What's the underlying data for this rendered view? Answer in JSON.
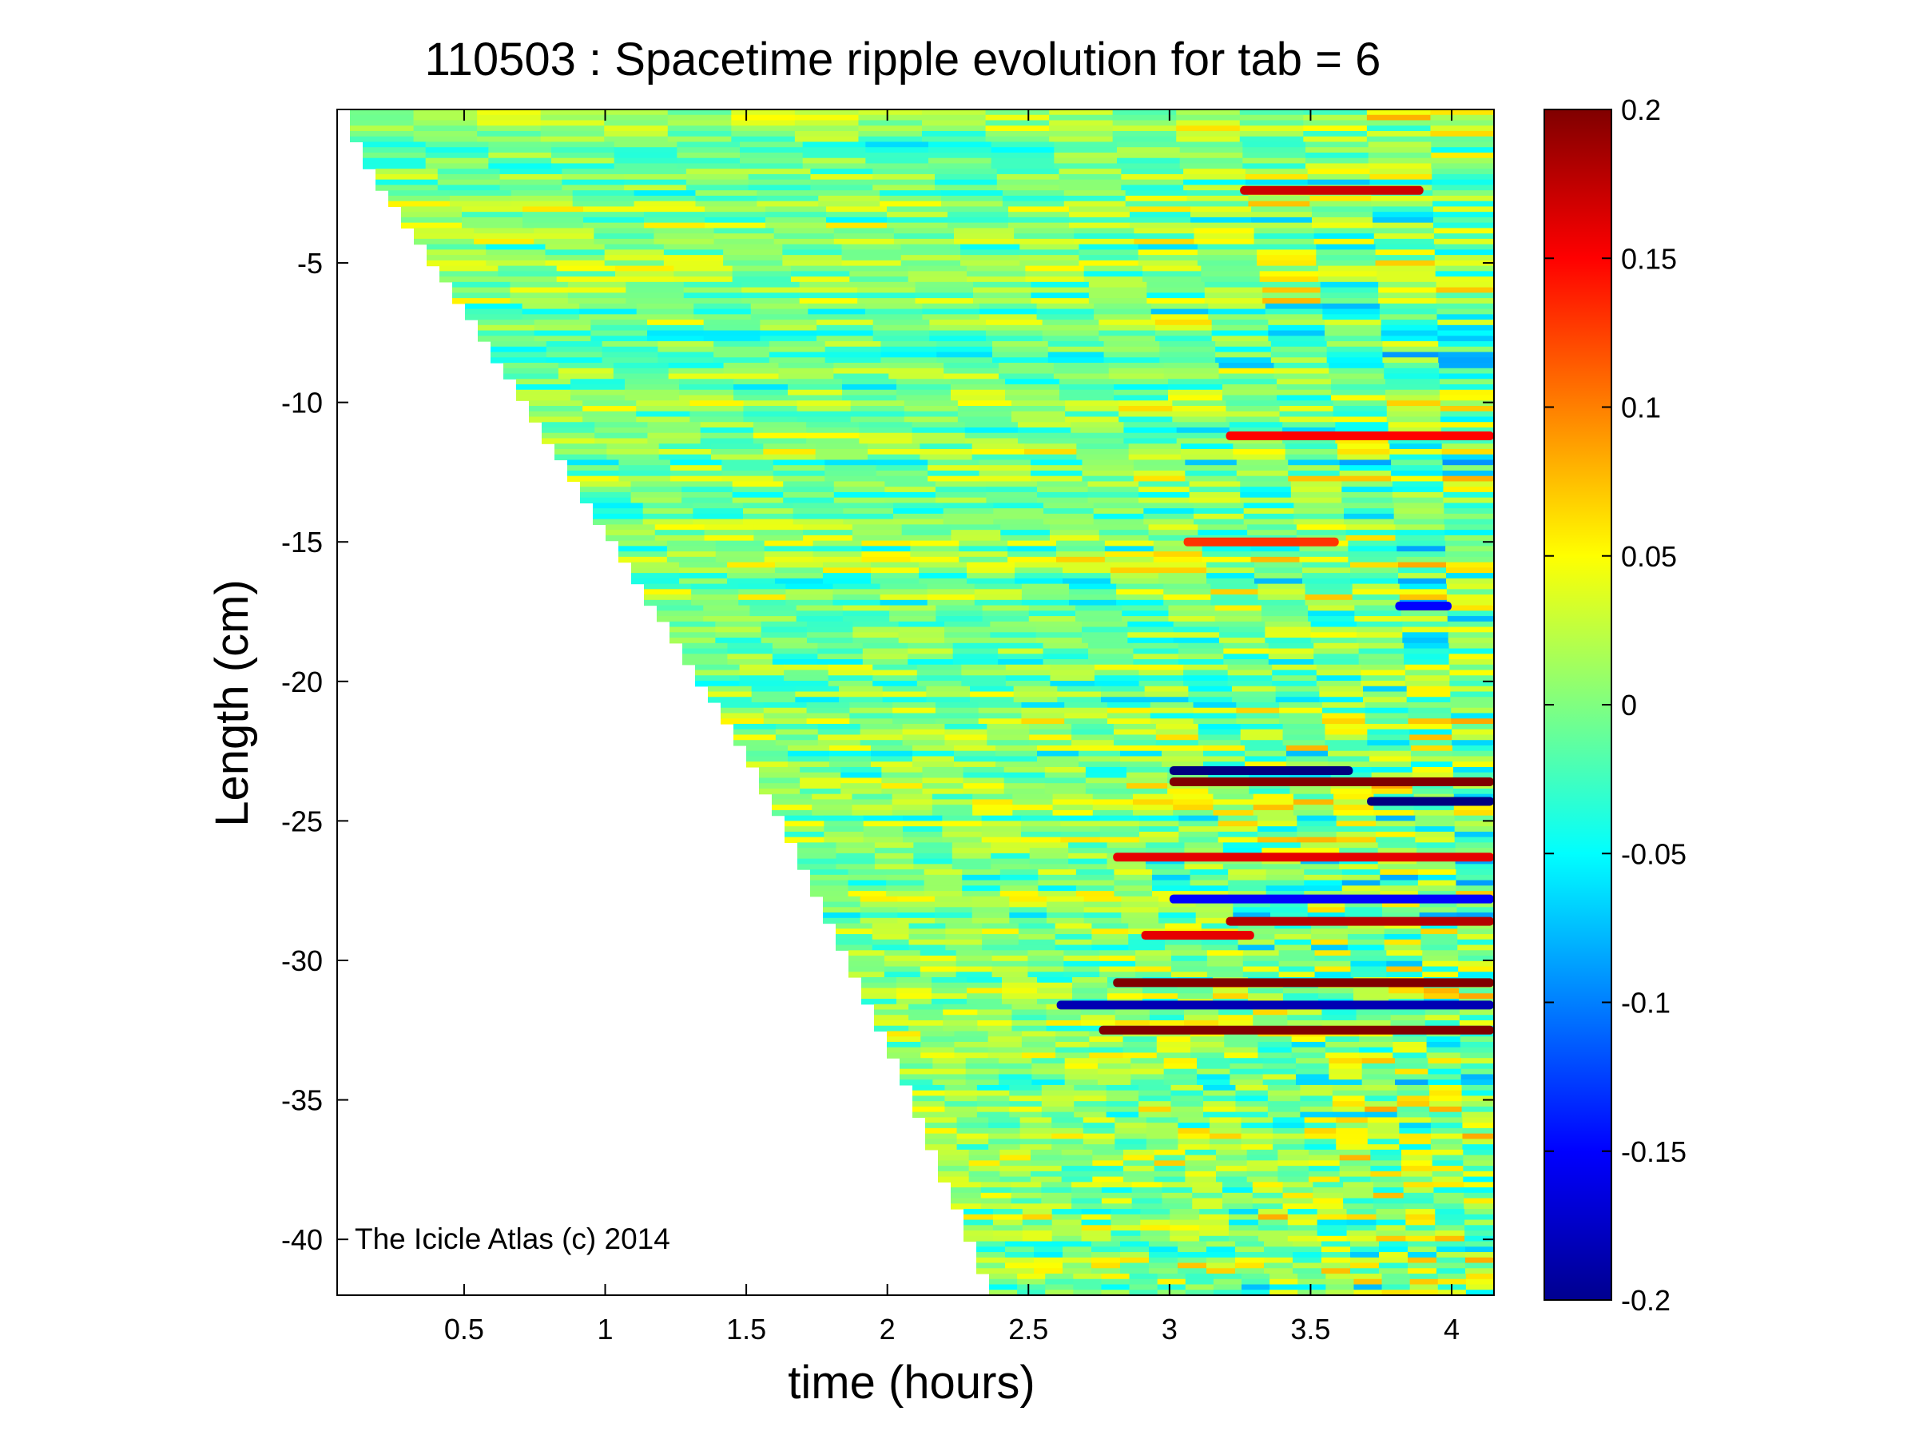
{
  "chart_data": {
    "type": "heatmap",
    "title": "110503 : Spacetime ripple evolution for tab = 6",
    "xlabel": "time (hours)",
    "ylabel": "Length (cm)",
    "xlim": [
      0.05,
      4.15
    ],
    "ylim": [
      -42,
      0.5
    ],
    "xticks": [
      0.5,
      1,
      1.5,
      2,
      2.5,
      3,
      3.5,
      4
    ],
    "xtick_labels": [
      "0.5",
      "1",
      "1.5",
      "2",
      "2.5",
      "3",
      "3.5",
      "4"
    ],
    "yticks": [
      -5,
      -10,
      -15,
      -20,
      -25,
      -30,
      -35,
      -40
    ],
    "ytick_labels": [
      "-5",
      "-10",
      "-15",
      "-20",
      "-25",
      "-30",
      "-35",
      "-40"
    ],
    "colormap": "jet",
    "clim": [
      -0.2,
      0.2
    ],
    "colorbar_ticks": [
      0.2,
      0.15,
      0.1,
      0.05,
      0,
      -0.05,
      -0.1,
      -0.15,
      -0.2
    ],
    "colorbar_labels": [
      "0.2",
      "0.15",
      "0.1",
      "0.05",
      "0",
      "-0.05",
      "-0.1",
      "-0.15",
      "-0.2"
    ],
    "grid": false,
    "data_boundary": {
      "description_free": true,
      "front": [
        [
          0.05,
          0.5
        ],
        [
          0.12,
          -1.4
        ],
        [
          0.5,
          -7
        ],
        [
          1.0,
          -15
        ],
        [
          1.5,
          -23
        ],
        [
          2.0,
          -33.5
        ],
        [
          2.35,
          -42
        ]
      ]
    },
    "features": [
      {
        "x": [
          3.0,
          3.65
        ],
        "y": -23.2,
        "value": -0.2
      },
      {
        "x": [
          3.0,
          4.15
        ],
        "y": -23.6,
        "value": 0.2
      },
      {
        "x": [
          3.7,
          4.15
        ],
        "y": -24.3,
        "value": -0.2
      },
      {
        "x": [
          3.0,
          4.15
        ],
        "y": -27.8,
        "value": -0.15
      },
      {
        "x": [
          3.2,
          4.15
        ],
        "y": -28.6,
        "value": 0.18
      },
      {
        "x": [
          2.8,
          4.15
        ],
        "y": -30.8,
        "value": 0.2
      },
      {
        "x": [
          2.6,
          4.15
        ],
        "y": -31.6,
        "value": -0.18
      },
      {
        "x": [
          2.75,
          4.15
        ],
        "y": -32.5,
        "value": 0.2
      },
      {
        "x": [
          3.25,
          3.9
        ],
        "y": -2.4,
        "value": 0.17
      },
      {
        "x": [
          3.2,
          4.15
        ],
        "y": -11.2,
        "value": 0.15
      },
      {
        "x": [
          2.8,
          4.15
        ],
        "y": -26.3,
        "value": 0.16
      },
      {
        "x": [
          3.05,
          3.6
        ],
        "y": -15.0,
        "value": 0.13
      },
      {
        "x": [
          3.8,
          4.0
        ],
        "y": -17.3,
        "value": -0.15
      },
      {
        "x": [
          2.9,
          3.3
        ],
        "y": -29.1,
        "value": 0.16
      }
    ]
  },
  "watermark": "The Icicle Atlas (c) 2014"
}
